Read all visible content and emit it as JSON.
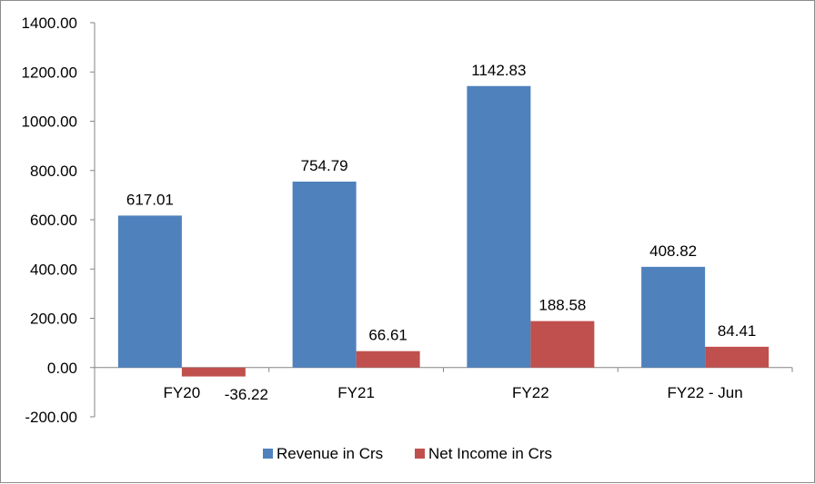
{
  "chart_data": {
    "type": "bar",
    "title": "",
    "xlabel": "",
    "ylabel": "",
    "categories": [
      "FY20",
      "FY21",
      "FY22",
      "FY22 - Jun"
    ],
    "series": [
      {
        "name": "Revenue in Crs",
        "color": "#4f81bd",
        "values": [
          617.01,
          754.79,
          1142.83,
          408.82
        ],
        "labels": [
          "617.01",
          "754.79",
          "1142.83",
          "408.82"
        ]
      },
      {
        "name": "Net Income in Crs",
        "color": "#c0504d",
        "values": [
          -36.22,
          66.61,
          188.58,
          84.41
        ],
        "labels": [
          "-36.22",
          "66.61",
          "188.58",
          "84.41"
        ]
      }
    ],
    "ylim": [
      -200,
      1400
    ],
    "yticks": [
      1400,
      1200,
      1000,
      800,
      600,
      400,
      200,
      0,
      -200
    ],
    "ytick_labels": [
      "1400.00",
      "1200.00",
      "1000.00",
      "800.00",
      "600.00",
      "400.00",
      "200.00",
      "0.00",
      "-200.00"
    ],
    "grid": false,
    "legend_position": "bottom"
  }
}
